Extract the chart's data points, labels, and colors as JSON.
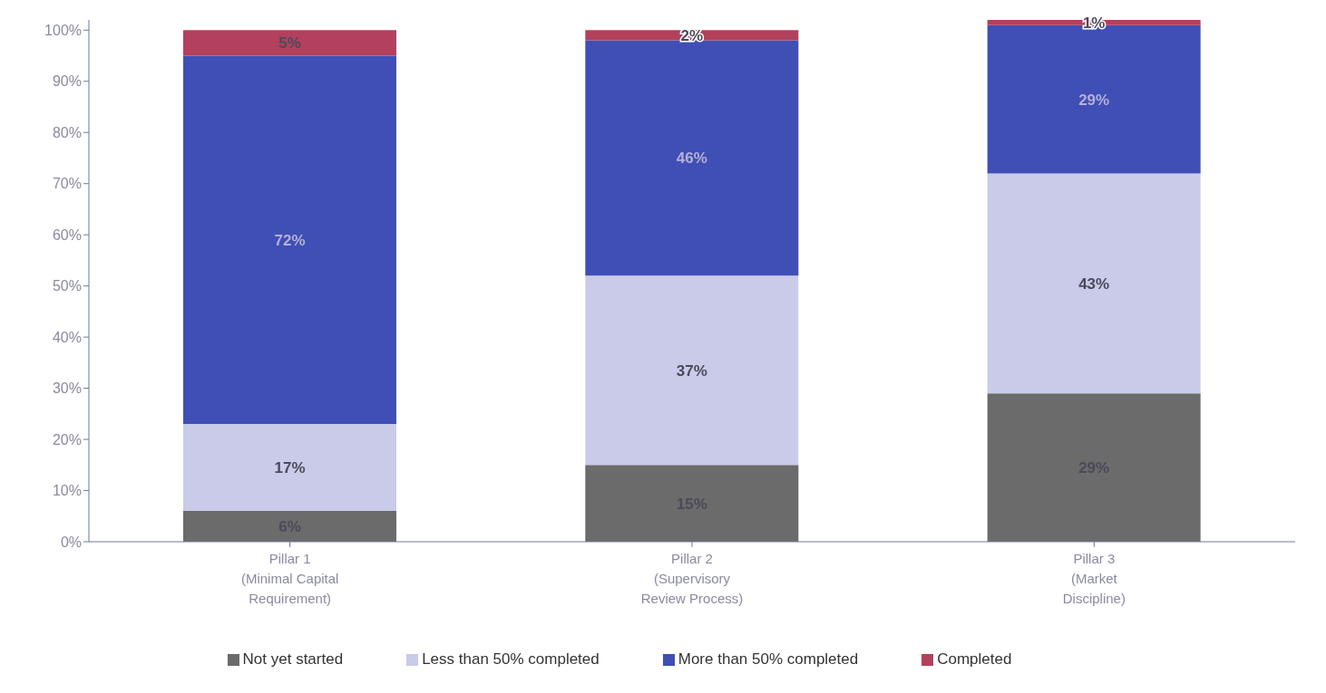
{
  "chart_data": {
    "type": "bar",
    "stacked": true,
    "categories": [
      "Pillar 1\n(Minimal Capital\nRequirement)",
      "Pillar 2\n(Supervisory\nReview Process)",
      "Pillar 3\n(Market\nDiscipline)"
    ],
    "series": [
      {
        "name": "Not yet started",
        "color": "#6b6b6b",
        "values": [
          6,
          15,
          29
        ],
        "value_labels": [
          "6%",
          "15%",
          "29%"
        ]
      },
      {
        "name": "Less than 50% completed",
        "color": "#c9cbe9",
        "values": [
          17,
          37,
          43
        ],
        "value_labels": [
          "17%",
          "37%",
          "43%"
        ]
      },
      {
        "name": "More than 50% completed",
        "color": "#3f4fb5",
        "values": [
          72,
          46,
          29
        ],
        "value_labels": [
          "72%",
          "46%",
          "29%"
        ]
      },
      {
        "name": "Completed",
        "color": "#b3405c",
        "values": [
          5,
          2,
          1
        ],
        "value_labels": [
          "5%",
          "2%",
          "1%"
        ]
      }
    ],
    "ylim": [
      0,
      102
    ],
    "yticks": [
      {
        "value": 0,
        "label": "0%"
      },
      {
        "value": 10,
        "label": "10%"
      },
      {
        "value": 20,
        "label": "20%"
      },
      {
        "value": 30,
        "label": "30%"
      },
      {
        "value": 40,
        "label": "40%"
      },
      {
        "value": 50,
        "label": "50%"
      },
      {
        "value": 60,
        "label": "60%"
      },
      {
        "value": 70,
        "label": "70%"
      },
      {
        "value": 80,
        "label": "80%"
      },
      {
        "value": 90,
        "label": "90%"
      },
      {
        "value": 100,
        "label": "100%"
      }
    ],
    "grid": false,
    "legend": "bottom"
  }
}
